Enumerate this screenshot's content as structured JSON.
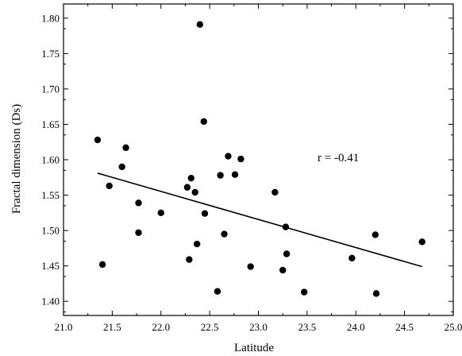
{
  "chart_data": {
    "type": "scatter",
    "xlabel": "Latitude",
    "ylabel": "Fractal dimension (Ds)",
    "xlim": [
      21.0,
      25.0
    ],
    "ylim": [
      1.38,
      1.82
    ],
    "xticks": [
      "21.0",
      "21.5",
      "22.0",
      "22.5",
      "23.0",
      "23.5",
      "24.0",
      "24.5",
      "25.0"
    ],
    "yticks": [
      "1.40",
      "1.45",
      "1.50",
      "1.55",
      "1.60",
      "1.65",
      "1.70",
      "1.75",
      "1.80"
    ],
    "grid": false,
    "annotation": "r = -0.41",
    "points": [
      {
        "x": 21.35,
        "y": 1.628
      },
      {
        "x": 21.4,
        "y": 1.452
      },
      {
        "x": 21.47,
        "y": 1.563
      },
      {
        "x": 21.6,
        "y": 1.59
      },
      {
        "x": 21.64,
        "y": 1.617
      },
      {
        "x": 21.77,
        "y": 1.539
      },
      {
        "x": 21.77,
        "y": 1.497
      },
      {
        "x": 22.0,
        "y": 1.525
      },
      {
        "x": 22.27,
        "y": 1.561
      },
      {
        "x": 22.29,
        "y": 1.459
      },
      {
        "x": 22.31,
        "y": 1.574
      },
      {
        "x": 22.35,
        "y": 1.554
      },
      {
        "x": 22.37,
        "y": 1.481
      },
      {
        "x": 22.4,
        "y": 1.791
      },
      {
        "x": 22.44,
        "y": 1.654
      },
      {
        "x": 22.45,
        "y": 1.524
      },
      {
        "x": 22.58,
        "y": 1.414
      },
      {
        "x": 22.61,
        "y": 1.578
      },
      {
        "x": 22.65,
        "y": 1.495
      },
      {
        "x": 22.69,
        "y": 1.605
      },
      {
        "x": 22.76,
        "y": 1.579
      },
      {
        "x": 22.82,
        "y": 1.601
      },
      {
        "x": 22.92,
        "y": 1.449
      },
      {
        "x": 23.17,
        "y": 1.554
      },
      {
        "x": 23.25,
        "y": 1.444
      },
      {
        "x": 23.28,
        "y": 1.505
      },
      {
        "x": 23.29,
        "y": 1.467
      },
      {
        "x": 23.47,
        "y": 1.413
      },
      {
        "x": 23.96,
        "y": 1.461
      },
      {
        "x": 24.2,
        "y": 1.494
      },
      {
        "x": 24.21,
        "y": 1.411
      },
      {
        "x": 24.68,
        "y": 1.484
      }
    ],
    "trendline": {
      "x": [
        21.35,
        24.68
      ],
      "y": [
        1.581,
        1.449
      ]
    }
  }
}
